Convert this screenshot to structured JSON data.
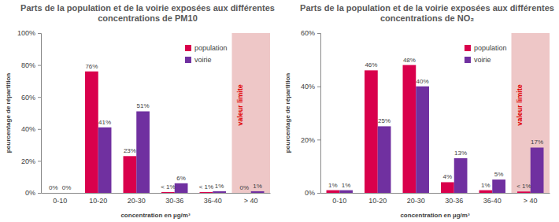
{
  "chart_data": [
    {
      "type": "bar",
      "title": "Parts de la population et de la voirie exposées aux différentes concentrations de PM10",
      "categories": [
        "0-10",
        "10-20",
        "20-30",
        "30-36",
        "36-40",
        "> 40"
      ],
      "series": [
        {
          "name": "population",
          "color": "#d9004c",
          "values": [
            0,
            76,
            23,
            0.5,
            0.5,
            0
          ],
          "value_labels": [
            "0%",
            "76%",
            "23%",
            "< 1%",
            "< 1%",
            "0%"
          ]
        },
        {
          "name": "voirie",
          "color": "#7030a0",
          "values": [
            0,
            41,
            51,
            6,
            1,
            1
          ],
          "value_labels": [
            "0%",
            "41%",
            "51%",
            "6%",
            "1%",
            "1%"
          ]
        }
      ],
      "xlabel": "concentration en µg/m³",
      "ylabel": "pourcentage de répartition",
      "ylim": [
        0,
        100
      ],
      "yticks": [
        {
          "value": 0,
          "label": "0%"
        },
        {
          "value": 20,
          "label": "20%"
        },
        {
          "value": 40,
          "label": "40%"
        },
        {
          "value": 60,
          "label": "60%"
        },
        {
          "value": 80,
          "label": "80%"
        },
        {
          "value": 100,
          "label": "100%"
        }
      ],
      "annotations": [
        {
          "text": "valeur limite",
          "x": "> 40"
        }
      ],
      "legend": "upper right",
      "data_labels": true,
      "grid": false
    },
    {
      "type": "bar",
      "title": "Parts de la population et de la voirie exposées aux différentes concentrations de NO₂",
      "categories": [
        "0-10",
        "10-20",
        "20-30",
        "30-36",
        "36-40",
        "> 40"
      ],
      "series": [
        {
          "name": "population",
          "color": "#d9004c",
          "values": [
            1,
            46,
            48,
            4,
            1,
            0.5
          ],
          "value_labels": [
            "1%",
            "46%",
            "48%",
            "4%",
            "1%",
            "< 1%"
          ]
        },
        {
          "name": "voirie",
          "color": "#7030a0",
          "values": [
            1,
            25,
            40,
            13,
            5,
            17
          ],
          "value_labels": [
            "1%",
            "25%",
            "40%",
            "13%",
            "5%",
            "17%"
          ]
        }
      ],
      "xlabel": "concentration en µg/m³",
      "ylabel": "pourcentage de répartition",
      "ylim": [
        0,
        60
      ],
      "yticks": [
        {
          "value": 0,
          "label": "0%"
        },
        {
          "value": 20,
          "label": "20%"
        },
        {
          "value": 40,
          "label": "40%"
        },
        {
          "value": 60,
          "label": "60%"
        }
      ],
      "annotations": [
        {
          "text": "valeur limite",
          "x": "> 40"
        }
      ],
      "legend": "upper right",
      "data_labels": true,
      "grid": false
    }
  ]
}
